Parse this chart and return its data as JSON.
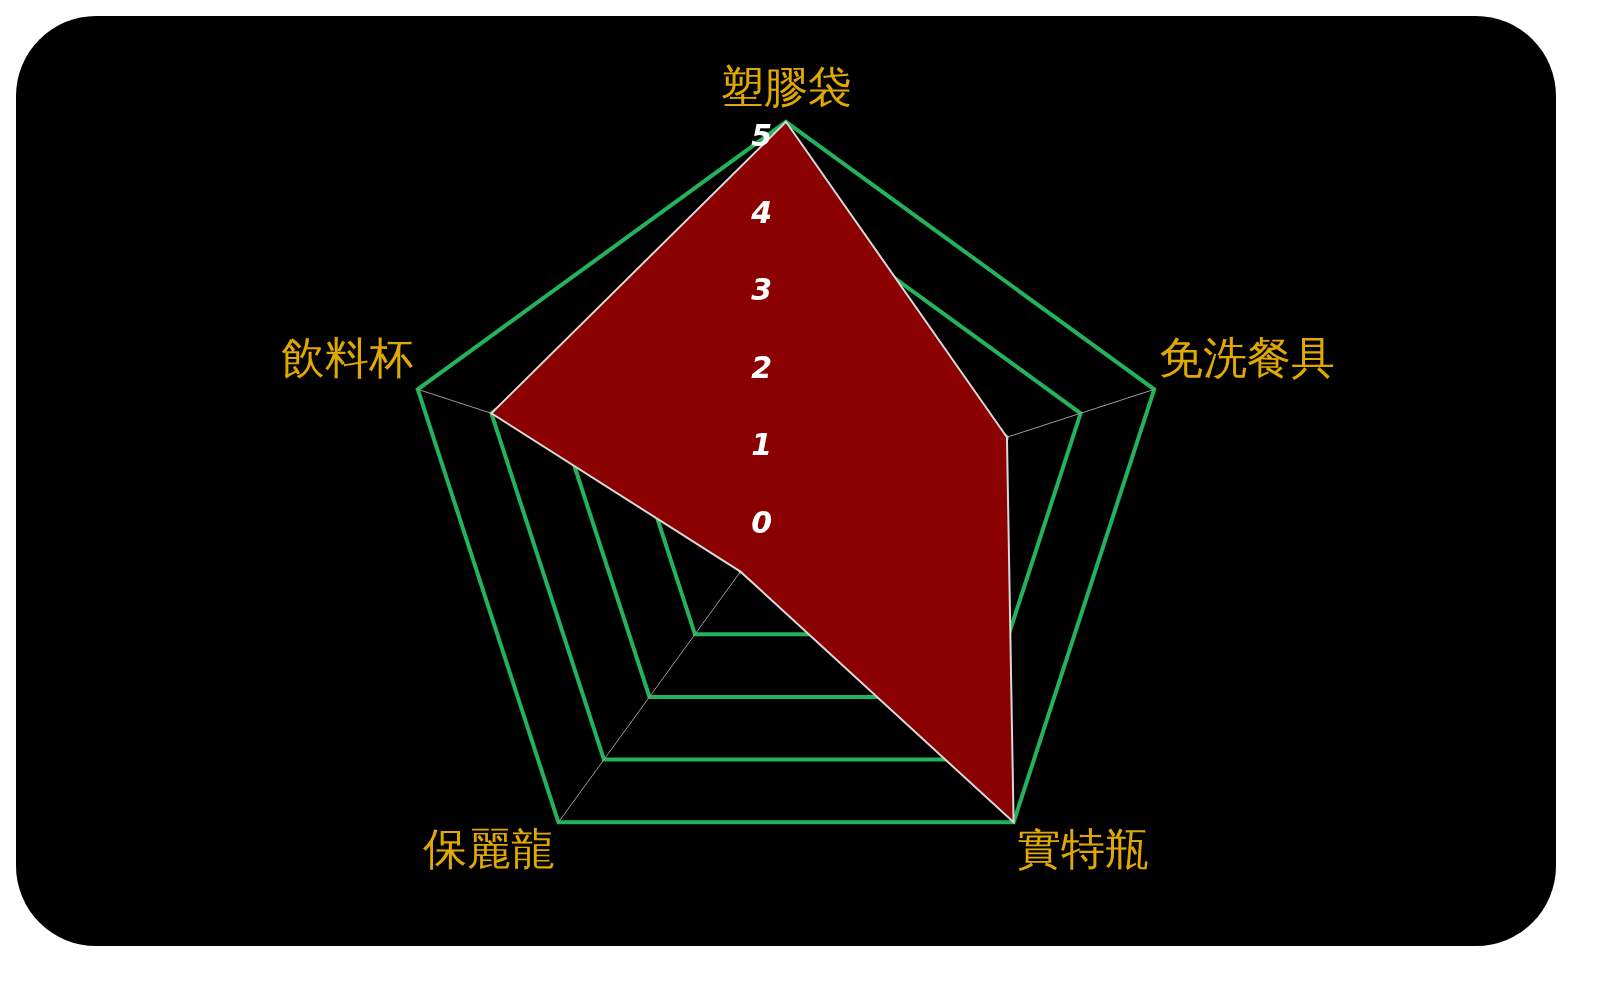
{
  "chart_data": {
    "type": "radar",
    "categories": [
      "塑膠袋",
      "免洗餐具",
      "實特瓶",
      "保麗龍",
      "飲料杯"
    ],
    "series": [
      {
        "color": "#8b0000",
        "values": [
          5,
          3,
          5,
          1,
          4
        ]
      }
    ],
    "ylim": [
      0,
      5
    ],
    "yticks": [
      0,
      1,
      2,
      3,
      4,
      5
    ],
    "grid": true,
    "marker": "none",
    "legend": false
  }
}
